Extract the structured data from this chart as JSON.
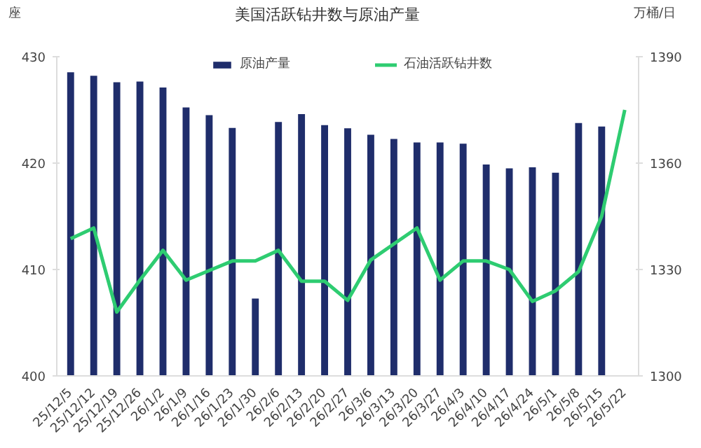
{
  "chart_data": {
    "type": "bar",
    "title": "美国活跃钻井数与原油产量",
    "ylabel": "座",
    "y2label": "万桶/日",
    "categories": [
      "25/12/5",
      "25/12/12",
      "25/12/19",
      "25/12/26",
      "26/1/2",
      "26/1/9",
      "26/1/16",
      "26/1/23",
      "26/1/30",
      "26/2/6",
      "26/2/13",
      "26/2/20",
      "26/2/27",
      "26/3/6",
      "26/3/13",
      "26/3/20",
      "26/3/27",
      "26/4/3",
      "26/4/10",
      "26/4/17",
      "26/4/24",
      "26/5/1",
      "26/5/8",
      "26/5/15",
      "26/5/22"
    ],
    "series": [
      {
        "name": "原油产量",
        "axis": "y2",
        "color": "#1f2d6b",
        "values": [
          1385.6,
          1384.6,
          1382.8,
          1383,
          1381.3,
          1375.7,
          1373.5,
          1369.9,
          1321.8,
          1371.6,
          1373.8,
          1370.7,
          1369.8,
          1368,
          1366.8,
          1365.8,
          1365.8,
          1365.5,
          1359.6,
          1358.5,
          1358.8,
          1357.3,
          1371.3,
          1370.3,
          null
        ]
      },
      {
        "name": "石油活跃钻井数",
        "type": "line",
        "axis": "y",
        "color": "#2ecc71",
        "values": [
          412.9,
          413.9,
          406.0,
          409.0,
          411.8,
          409.0,
          409.9,
          410.8,
          410.8,
          411.8,
          408.9,
          408.9,
          407.1,
          410.9,
          412.4,
          413.9,
          409.0,
          410.8,
          410.8,
          410.0,
          407.0,
          408.0,
          409.8,
          415.0,
          425.0
        ]
      }
    ],
    "ylim": [
      400,
      430
    ],
    "yticks": [
      400,
      410,
      420,
      430
    ],
    "y2lim": [
      1300,
      1390
    ],
    "y2ticks": [
      1300,
      1330,
      1360,
      1390
    ],
    "legend": "top"
  }
}
